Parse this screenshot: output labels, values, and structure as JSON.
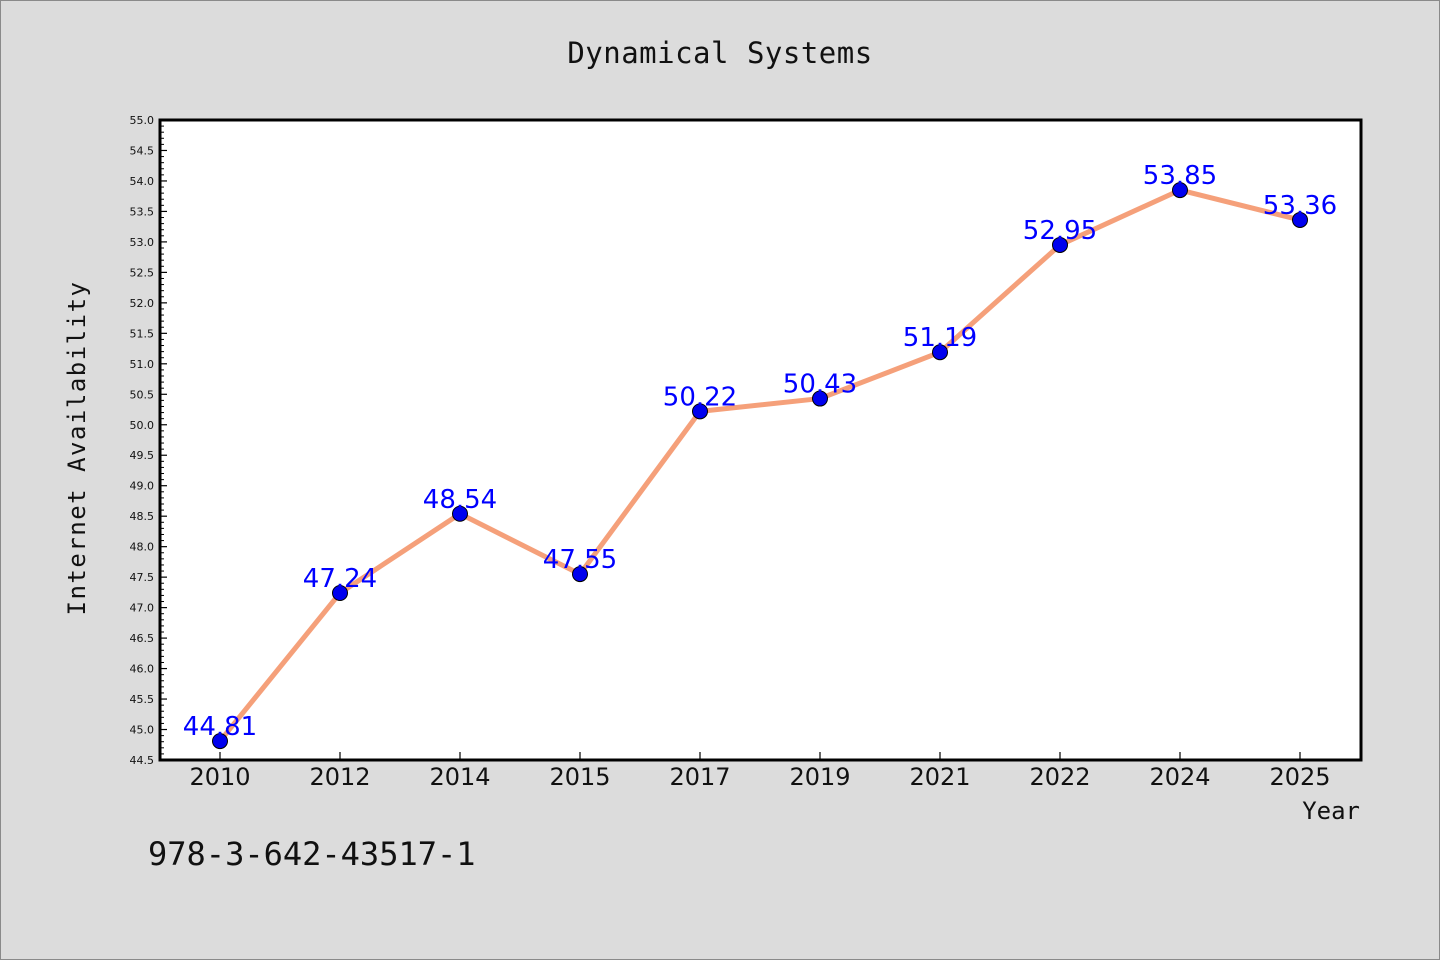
{
  "colors": {
    "line": "#f5a07a",
    "marker": "#0000ee",
    "label": "#0000ff",
    "background": "#dcdcdc",
    "plot_background": "#ffffff"
  },
  "chart_data": {
    "type": "line",
    "title": "Dynamical Systems",
    "xlabel": "Year",
    "ylabel": "Internet Availability",
    "categories": [
      "2010",
      "2012",
      "2014",
      "2015",
      "2017",
      "2019",
      "2021",
      "2022",
      "2024",
      "2025"
    ],
    "series": [
      {
        "values": [
          44.81,
          47.24,
          48.54,
          47.55,
          50.22,
          50.43,
          51.19,
          52.95,
          53.85,
          53.36
        ]
      }
    ],
    "data_labels": [
      "44.81",
      "47.24",
      "48.54",
      "47.55",
      "50.22",
      "50.43",
      "51.19",
      "52.95",
      "53.85",
      "53.36"
    ],
    "ylim": [
      44.5,
      55.0
    ],
    "yticks": [
      44.5,
      45.0,
      45.5,
      46.0,
      46.5,
      47.0,
      47.5,
      48.0,
      48.5,
      49.0,
      49.5,
      50.0,
      50.5,
      51.0,
      51.5,
      52.0,
      52.5,
      53.0,
      53.5,
      54.0,
      54.5,
      55.0
    ],
    "ytick_labels": [
      "44.5",
      "45.0",
      "45.5",
      "46.0",
      "46.5",
      "47.0",
      "47.5",
      "48.0",
      "48.5",
      "49.0",
      "49.5",
      "50.0",
      "50.5",
      "51.0",
      "51.5",
      "52.0",
      "52.5",
      "53.0",
      "53.5",
      "54.0",
      "54.5",
      "55.0"
    ],
    "grid": false,
    "legend": "none"
  },
  "footer": {
    "isbn": "978-3-642-43517-1"
  }
}
